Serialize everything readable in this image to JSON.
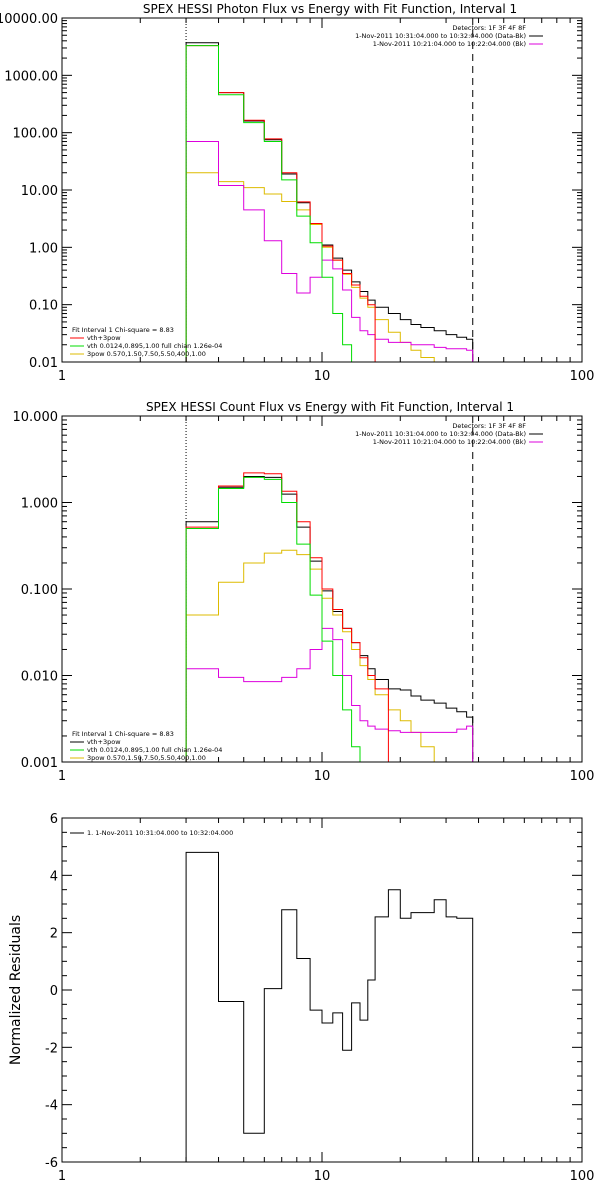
{
  "chart_data": [
    {
      "type": "line",
      "title": "SPEX HESSI Photon Flux vs Energy with Fit Function, Interval 1",
      "xscale": "log",
      "yscale": "log",
      "xlim": [
        1,
        100
      ],
      "ylim": [
        0.01,
        10000
      ],
      "xticks": [
        1,
        10,
        100
      ],
      "xtick_labels": [
        "1",
        "10",
        "100"
      ],
      "yticks": [
        0.01,
        0.1,
        1,
        10,
        100,
        1000,
        10000
      ],
      "ytick_labels": [
        "0.01",
        "0.10",
        "1.00",
        "10.00",
        "100.00",
        "1000.00",
        "10000.00"
      ],
      "vlines": [
        {
          "x": 3,
          "style": "dotted"
        },
        {
          "x": 38,
          "style": "dashed"
        }
      ],
      "info_legend": {
        "placement": "top-right",
        "lines": [
          {
            "text": "Detectors: 1F 3F 4F 8F",
            "color": ""
          },
          {
            "text": "1-Nov-2011 10:31:04.000 to 10:32:04.000 (Data-Bk)",
            "color": "#000000"
          },
          {
            "text": "1-Nov-2011 10:21:04.000 to 10:22:04.000 (Bk)",
            "color": "#dd00dd"
          }
        ]
      },
      "fit_legend": {
        "placement": "bottom-left",
        "lines": [
          {
            "text": "Fit Interval 1    Chi-square = 8.83",
            "color": ""
          },
          {
            "text": "vth+3pow",
            "color": "#ff0000"
          },
          {
            "text": "vth 0.0124,0.895,1.00  full chian 1.26e-04",
            "color": "#00dd00"
          },
          {
            "text": "3pow 0.570,1.50,7.50,5.50,400,1.00",
            "color": "#ddbb00"
          }
        ]
      },
      "edges": [
        3,
        4,
        5,
        6,
        7,
        8,
        9,
        10,
        11,
        12,
        13,
        14,
        15,
        16,
        18,
        20,
        22,
        24,
        27,
        30,
        33,
        36,
        38
      ],
      "series": [
        {
          "color": "#000000",
          "values": [
            3700,
            500,
            160,
            75,
            19,
            6,
            2.6,
            1.1,
            0.65,
            0.4,
            0.25,
            0.17,
            0.12,
            0.09,
            0.07,
            0.055,
            0.045,
            0.04,
            0.035,
            0.03,
            0.027,
            0.025
          ]
        },
        {
          "color": "#ff0000",
          "values": [
            3300,
            500,
            165,
            78,
            20,
            6.2,
            2.6,
            1.05,
            0.6,
            0.35,
            0.22,
            0.14,
            0.1
          ]
        },
        {
          "color": "#00dd00",
          "values": [
            3300,
            460,
            150,
            70,
            15,
            3.5,
            1.2,
            0.3,
            0.07,
            0.02,
            0.005
          ]
        },
        {
          "color": "#dd00dd",
          "values": [
            70,
            12,
            4.5,
            1.3,
            0.35,
            0.16,
            0.3,
            0.6,
            0.42,
            0.18,
            0.06,
            0.035,
            0.03,
            0.025,
            0.022,
            0.022,
            0.02,
            0.02,
            0.018,
            0.017,
            0.017,
            0.016
          ]
        },
        {
          "color": "#ddbb00",
          "values": [
            20,
            14,
            11,
            8.5,
            6.3,
            4.5,
            2.5,
            1.0,
            0.6,
            0.34,
            0.2,
            0.13,
            0.09,
            0.055,
            0.033,
            0.022,
            0.016,
            0.012,
            0.01
          ]
        }
      ]
    },
    {
      "type": "line",
      "title": "SPEX HESSI Count Flux vs Energy with Fit Function, Interval 1",
      "xscale": "log",
      "yscale": "log",
      "xlim": [
        1,
        100
      ],
      "ylim": [
        0.001,
        10
      ],
      "xticks": [
        1,
        10,
        100
      ],
      "xtick_labels": [
        "1",
        "10",
        "100"
      ],
      "yticks": [
        0.001,
        0.01,
        0.1,
        1,
        10
      ],
      "ytick_labels": [
        "0.001",
        "0.010",
        "0.100",
        "1.000",
        "10.000"
      ],
      "vlines": [
        {
          "x": 3,
          "style": "dotted"
        },
        {
          "x": 38,
          "style": "dashed"
        }
      ],
      "info_legend": {
        "placement": "top-right",
        "lines": [
          {
            "text": "Detectors: 1F 3F 4F 8F",
            "color": ""
          },
          {
            "text": "1-Nov-2011 10:31:04.000 to 10:32:04.000 (Data-Bk)",
            "color": "#000000"
          },
          {
            "text": "1-Nov-2011 10:21:04.000 to 10:22:04.000 (Bk)",
            "color": "#dd00dd"
          }
        ]
      },
      "fit_legend": {
        "placement": "bottom-left",
        "lines": [
          {
            "text": "Fit Interval 1    Chi-square = 8.83",
            "color": ""
          },
          {
            "text": "vth+3pow",
            "color": "#ff0000"
          },
          {
            "text": "vth 0.0124,0.895,1.00  full chian 1.26e-04",
            "color": "#00dd00"
          },
          {
            "text": "3pow 0.570,1.50,7.50,5.50,400,1.00",
            "color": "#ddbb00"
          }
        ]
      },
      "edges": [
        3,
        4,
        5,
        6,
        7,
        8,
        9,
        10,
        11,
        12,
        13,
        14,
        15,
        16,
        18,
        20,
        22,
        24,
        27,
        30,
        33,
        36,
        38
      ],
      "series": [
        {
          "color": "#000000",
          "values": [
            0.6,
            1.5,
            2.0,
            1.95,
            1.25,
            0.52,
            0.21,
            0.095,
            0.055,
            0.035,
            0.024,
            0.017,
            0.012,
            0.009,
            0.007,
            0.0068,
            0.0058,
            0.0052,
            0.0048,
            0.0042,
            0.0038,
            0.0033
          ]
        },
        {
          "color": "#ff0000",
          "values": [
            0.52,
            1.55,
            2.2,
            2.15,
            1.35,
            0.6,
            0.23,
            0.1,
            0.058,
            0.035,
            0.024,
            0.016,
            0.01,
            0.007
          ]
        },
        {
          "color": "#00dd00",
          "values": [
            0.5,
            1.45,
            1.95,
            1.85,
            1.0,
            0.33,
            0.085,
            0.025,
            0.01,
            0.004,
            0.0015,
            0.0005
          ]
        },
        {
          "color": "#dd00dd",
          "values": [
            0.012,
            0.0095,
            0.0085,
            0.0085,
            0.0095,
            0.012,
            0.02,
            0.035,
            0.026,
            0.01,
            0.0045,
            0.003,
            0.0026,
            0.0024,
            0.0023,
            0.0022,
            0.0022,
            0.0022,
            0.0022,
            0.0022,
            0.0024,
            0.0026
          ]
        },
        {
          "color": "#ddbb00",
          "values": [
            0.05,
            0.12,
            0.2,
            0.26,
            0.28,
            0.25,
            0.17,
            0.078,
            0.05,
            0.032,
            0.02,
            0.013,
            0.009,
            0.006,
            0.004,
            0.003,
            0.0022,
            0.0015,
            0.0009
          ]
        }
      ]
    },
    {
      "type": "line",
      "title": "",
      "ylabel": "Normalized Residuals",
      "xscale": "log",
      "yscale": "linear",
      "xlim": [
        1,
        100
      ],
      "ylim": [
        -6,
        6
      ],
      "xticks": [
        1,
        10,
        100
      ],
      "xtick_labels": [
        "1",
        "10",
        "100"
      ],
      "yticks": [
        -6,
        -4,
        -2,
        0,
        2,
        4,
        6
      ],
      "ytick_labels": [
        "-6",
        "-4",
        "-2",
        "0",
        "2",
        "4",
        "6"
      ],
      "legend": {
        "placement": "top-left",
        "text": "1.  1-Nov-2011 10:31:04.000 to 10:32:04.000"
      },
      "edges": [
        3,
        4,
        5,
        6,
        7,
        8,
        9,
        10,
        11,
        12,
        13,
        14,
        15,
        16,
        18,
        20,
        22,
        24,
        27,
        30,
        33,
        36,
        38
      ],
      "series": [
        {
          "color": "#000000",
          "values": [
            4.8,
            -0.4,
            -5.0,
            0.05,
            2.8,
            1.1,
            -0.7,
            -1.15,
            -0.8,
            -2.1,
            -0.45,
            -1.05,
            0.35,
            2.55,
            3.5,
            2.5,
            2.7,
            2.7,
            3.15,
            2.55,
            2.5,
            2.5
          ]
        }
      ]
    }
  ]
}
